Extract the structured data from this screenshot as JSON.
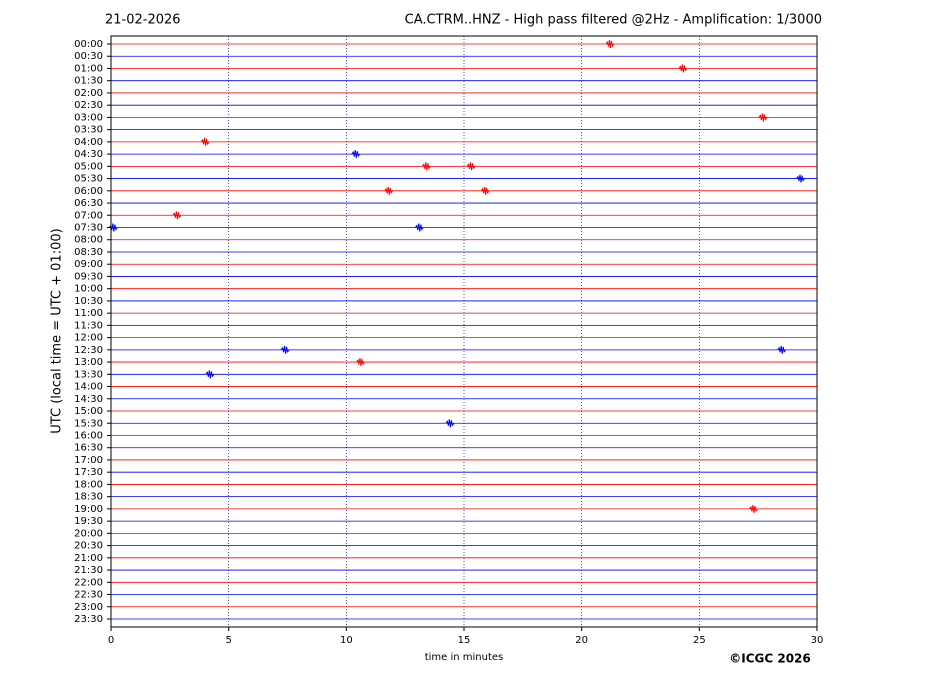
{
  "chart_data": {
    "type": "helicorder",
    "date": "21-02-2026",
    "title": "CA.CTRM..HNZ - High pass filtered @2Hz - Amplification: 1/3000",
    "ylabel": "UTC (local time = UTC + 01:00)",
    "xlabel": "time in minutes",
    "copyright": "©ICGC 2026",
    "categories": [
      "00:00",
      "00:30",
      "01:00",
      "01:30",
      "02:00",
      "02:30",
      "03:00",
      "03:30",
      "04:00",
      "04:30",
      "05:00",
      "05:30",
      "06:00",
      "06:30",
      "07:00",
      "07:30",
      "08:00",
      "08:30",
      "09:00",
      "09:30",
      "10:00",
      "10:30",
      "11:00",
      "11:30",
      "12:00",
      "12:30",
      "13:00",
      "13:30",
      "14:00",
      "14:30",
      "15:00",
      "15:30",
      "16:00",
      "16:30",
      "17:00",
      "17:30",
      "18:00",
      "18:30",
      "19:00",
      "19:30",
      "20:00",
      "20:30",
      "21:00",
      "21:30",
      "22:00",
      "22:30",
      "23:00",
      "23:30"
    ],
    "row_colors": [
      "#ff0000",
      "#0000ff"
    ],
    "xlim": [
      0,
      30
    ],
    "xticks": [
      0,
      5,
      10,
      15,
      20,
      25,
      30
    ],
    "grid": true,
    "events": [
      {
        "row": "00:00",
        "minute": 21.2
      },
      {
        "row": "01:00",
        "minute": 24.3
      },
      {
        "row": "03:00",
        "minute": 27.7
      },
      {
        "row": "04:00",
        "minute": 4.0
      },
      {
        "row": "04:30",
        "minute": 10.4
      },
      {
        "row": "05:00",
        "minute": 13.4
      },
      {
        "row": "05:00",
        "minute": 15.3
      },
      {
        "row": "05:30",
        "minute": 29.3
      },
      {
        "row": "06:00",
        "minute": 11.8
      },
      {
        "row": "06:00",
        "minute": 15.9
      },
      {
        "row": "07:00",
        "minute": 2.8
      },
      {
        "row": "07:30",
        "minute": 0.1
      },
      {
        "row": "07:30",
        "minute": 13.1
      },
      {
        "row": "12:30",
        "minute": 7.4
      },
      {
        "row": "12:30",
        "minute": 28.5
      },
      {
        "row": "13:00",
        "minute": 10.6
      },
      {
        "row": "13:30",
        "minute": 4.2
      },
      {
        "row": "15:30",
        "minute": 14.4
      },
      {
        "row": "19:00",
        "minute": 27.3
      }
    ]
  }
}
